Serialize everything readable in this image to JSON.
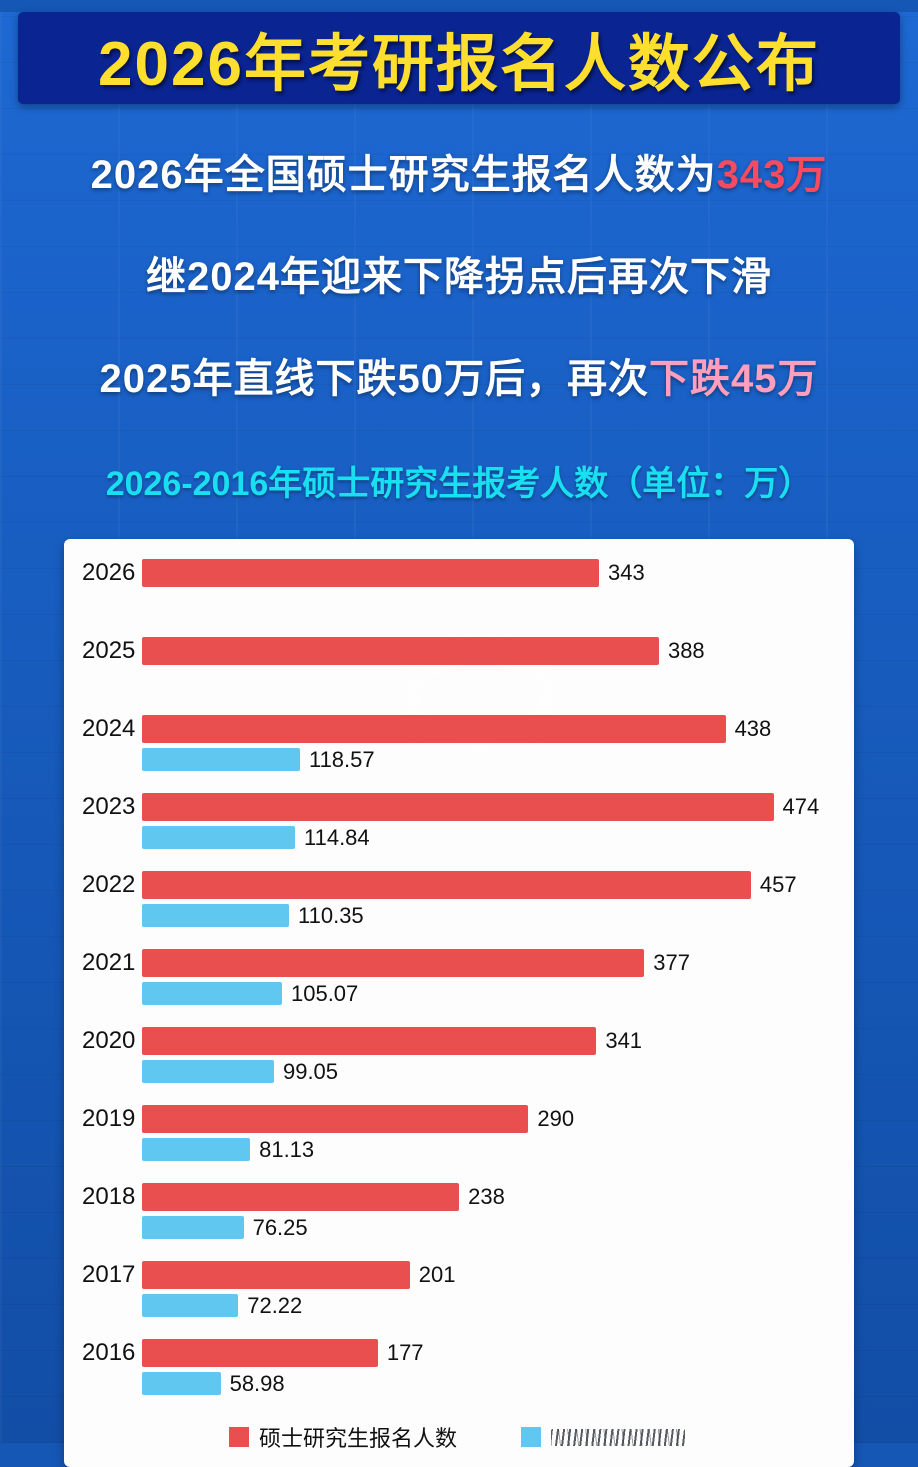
{
  "banner": {
    "title": "2026年考研报名人数公布"
  },
  "intro": {
    "line1_prefix": "2026年全国硕士研究生报名人数为",
    "line1_highlight": "343万",
    "line2": "继2024年迎来下降拐点后再次下滑",
    "line3_prefix": "2025年直线下跌50万后，再次",
    "line3_highlight": "下跌45万"
  },
  "chart_heading": "2026-2016年硕士研究生报考人数（单位：万）",
  "colors": {
    "banner_bg": "#0a2492",
    "title_yellow": "#ffdf2e",
    "highlight_red": "#fa4a5f",
    "highlight_pink": "#ff9ebd",
    "heading_cyan": "#19dff0",
    "bar_red": "#ea4f4f",
    "bar_blue": "#5fc7f0"
  },
  "chart_data": {
    "type": "bar",
    "orientation": "horizontal",
    "title": "2026-2016年硕士研究生报考人数（单位：万）",
    "unit": "万",
    "categories": [
      "2026",
      "2025",
      "2024",
      "2023",
      "2022",
      "2021",
      "2020",
      "2019",
      "2018",
      "2017",
      "2016"
    ],
    "xmax": 474,
    "grid": false,
    "legend_position": "bottom",
    "series": [
      {
        "name": "硕士研究生报名人数",
        "color": "#ea4f4f",
        "values": [
          343,
          388,
          438,
          474,
          457,
          377,
          341,
          290,
          238,
          201,
          177
        ],
        "labels": [
          "343",
          "388",
          "438",
          "474",
          "457",
          "377",
          "341",
          "290",
          "238",
          "201",
          "177"
        ]
      },
      {
        "name": "",
        "obscured": true,
        "color": "#5fc7f0",
        "values": [
          null,
          null,
          118.57,
          114.84,
          110.35,
          105.07,
          99.05,
          81.13,
          76.25,
          72.22,
          58.98
        ],
        "labels": [
          null,
          null,
          "118.57",
          "114.84",
          "110.35",
          "105.07",
          "99.05",
          "81.13",
          "76.25",
          "72.22",
          "58.98"
        ]
      }
    ]
  },
  "legend": {
    "item1_label": "硕士研究生报名人数",
    "item2_obscured": true
  }
}
